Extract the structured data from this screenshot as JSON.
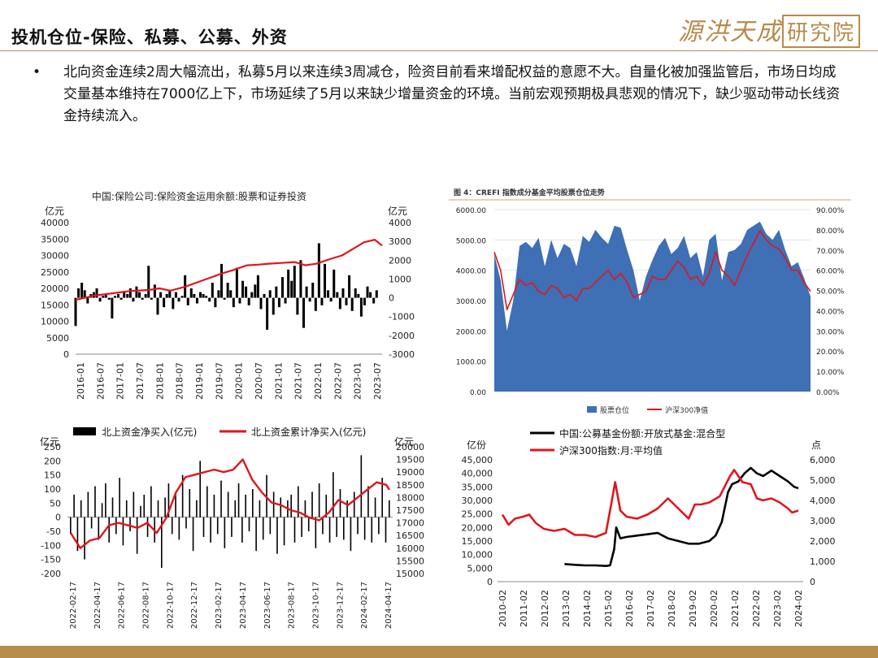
{
  "header": {
    "title": "投机仓位-保险、私募、公募、外资",
    "logo_text": "源洪天成",
    "logo_box_text": "研究院"
  },
  "bullet": {
    "text": "北向资金连续2周大幅流出，私募5月以来连续3周减仓，险资目前看来增配权益的意愿不大。自量化被加强监管后，市场日均成交量基本维持在7000亿上下，市场延续了5月以来缺少增量资金的环境。当前宏观预期极具悲观的情况下，缺少驱动带动长线资金持续流入。"
  },
  "colors": {
    "red": "#e0161b",
    "black": "#000000",
    "blue_area": "#3f6fb5",
    "footer": "#b68d4c",
    "accent": "#b88a4a"
  },
  "chart_data": [
    {
      "type": "bar",
      "title": "中国:保险公司:保险资金运用余额:股票和证券投资",
      "left_unit": "亿元",
      "right_unit": "亿元",
      "left_ticks": [
        "40000",
        "35000",
        "30000",
        "25000",
        "20000",
        "15000",
        "10000",
        "5000",
        "0"
      ],
      "right_ticks": [
        "4000",
        "3000",
        "2000",
        "1000",
        "0",
        "-1000",
        "-2000",
        "-3000"
      ],
      "ylim_left": [
        0,
        40000
      ],
      "ylim_right": [
        -3000,
        4000
      ],
      "x_ticks": [
        "2016-01",
        "2016-07",
        "2017-01",
        "2017-07",
        "2018-01",
        "2018-07",
        "2019-01",
        "2019-07",
        "2020-01",
        "2020-07",
        "2021-01",
        "2021-07",
        "2022-01",
        "2022-07",
        "2023-01",
        "2023-07"
      ],
      "series": [
        {
          "kind": "line",
          "axis": "left",
          "color": "#e0161b",
          "x": [
            2016.0,
            2016.5,
            2017.0,
            2017.5,
            2018.0,
            2018.3,
            2018.6,
            2019.0,
            2019.5,
            2020.0,
            2020.3,
            2020.7,
            2021.0,
            2021.3,
            2021.6,
            2022.0,
            2022.3,
            2022.6,
            2023.0,
            2023.3,
            2023.6,
            2023.9,
            2024.2,
            2024.4
          ],
          "y": [
            16500,
            17800,
            18500,
            19200,
            19500,
            20000,
            19300,
            20500,
            22500,
            24500,
            25500,
            27000,
            27200,
            27500,
            27700,
            28000,
            27000,
            27500,
            29000,
            30000,
            32000,
            34000,
            34800,
            33000
          ]
        },
        {
          "kind": "bar",
          "axis": "right",
          "x": [
            2016.0,
            2016.08,
            2016.17,
            2016.25,
            2016.33,
            2016.42,
            2016.5,
            2016.58,
            2016.67,
            2016.75,
            2016.83,
            2016.92,
            2017.0,
            2017.08,
            2017.17,
            2017.25,
            2017.33,
            2017.42,
            2017.5,
            2017.58,
            2017.67,
            2017.75,
            2017.83,
            2017.92,
            2018.0,
            2018.08,
            2018.17,
            2018.25,
            2018.33,
            2018.42,
            2018.5,
            2018.58,
            2018.67,
            2018.75,
            2018.83,
            2018.92,
            2019.0,
            2019.08,
            2019.17,
            2019.25,
            2019.33,
            2019.42,
            2019.5,
            2019.58,
            2019.67,
            2019.75,
            2019.83,
            2019.92,
            2020.0,
            2020.08,
            2020.17,
            2020.25,
            2020.33,
            2020.42,
            2020.5,
            2020.58,
            2020.67,
            2020.75,
            2020.83,
            2020.92,
            2021.0,
            2021.08,
            2021.17,
            2021.25,
            2021.33,
            2021.42,
            2021.5,
            2021.58,
            2021.67,
            2021.75,
            2021.83,
            2021.92,
            2022.0,
            2022.08,
            2022.17,
            2022.25,
            2022.33,
            2022.42,
            2022.5,
            2022.58,
            2022.67,
            2022.75,
            2022.83,
            2022.92,
            2023.0,
            2023.08,
            2023.17,
            2023.25,
            2023.33,
            2023.42,
            2023.5,
            2023.58,
            2023.67,
            2023.75,
            2023.83,
            2023.92,
            2024.0,
            2024.08,
            2024.17,
            2024.25
          ],
          "y": [
            -1500,
            500,
            800,
            400,
            -300,
            200,
            300,
            500,
            -200,
            100,
            200,
            -100,
            -1100,
            100,
            200,
            -100,
            300,
            200,
            500,
            -200,
            600,
            300,
            -100,
            200,
            1700,
            -100,
            700,
            -900,
            300,
            -500,
            200,
            400,
            -600,
            300,
            -200,
            100,
            1200,
            -400,
            500,
            200,
            -300,
            300,
            200,
            100,
            -200,
            800,
            -500,
            400,
            1800,
            -100,
            800,
            400,
            -500,
            1600,
            -300,
            900,
            600,
            -400,
            300,
            700,
            1200,
            -600,
            200,
            -1700,
            400,
            -900,
            600,
            -500,
            1100,
            -300,
            1500,
            900,
            1700,
            -900,
            2000,
            -1600,
            600,
            -200,
            800,
            -700,
            2900,
            -400,
            1800,
            400,
            -200,
            1500,
            300,
            -600,
            500,
            -400,
            1200,
            -700,
            500,
            200,
            -1000,
            -400,
            600,
            300,
            -300,
            400
          ]
        }
      ]
    },
    {
      "type": "area",
      "title": "图 4：CREFI 指数成分基金平均股票仓位走势",
      "left_ticks": [
        "6000.00",
        "5000.00",
        "4000.00",
        "3000.00",
        "2000.00",
        "1000.00",
        "0.00"
      ],
      "right_ticks": [
        "90.00%",
        "80.00%",
        "70.00%",
        "60.00%",
        "50.00%",
        "40.00%",
        "30.00%",
        "20.00%",
        "10.00%",
        "0.00%"
      ],
      "ylim_left": [
        0,
        6000
      ],
      "ylim_right": [
        0,
        90
      ],
      "legend": [
        "股票仓位",
        "沪深300净值"
      ],
      "series": [
        {
          "name": "股票仓位",
          "kind": "area",
          "axis": "right",
          "color": "#3f6fb5",
          "x": [
            0,
            2,
            4,
            6,
            8,
            10,
            12,
            14,
            16,
            18,
            20,
            22,
            24,
            26,
            28,
            30,
            32,
            34,
            36,
            38,
            40,
            42,
            44,
            46,
            48,
            50,
            52,
            54,
            56,
            58,
            60,
            62,
            64,
            66,
            68,
            70,
            72,
            74,
            76,
            78,
            80,
            82,
            84,
            86,
            88,
            90,
            92,
            94,
            96,
            98,
            100
          ],
          "y": [
            68,
            55,
            30,
            45,
            72,
            74,
            71,
            76,
            62,
            75,
            66,
            73,
            71,
            62,
            77,
            74,
            80,
            76,
            73,
            82,
            81,
            70,
            60,
            45,
            57,
            65,
            72,
            76,
            68,
            71,
            77,
            66,
            69,
            57,
            75,
            78,
            55,
            69,
            70,
            73,
            80,
            82,
            84,
            78,
            75,
            80,
            70,
            62,
            64,
            56,
            47
          ]
        },
        {
          "name": "沪深300净值",
          "kind": "line",
          "axis": "left",
          "color": "#e0161b",
          "x": [
            0,
            2,
            4,
            6,
            8,
            10,
            12,
            14,
            16,
            18,
            20,
            22,
            24,
            26,
            28,
            30,
            32,
            34,
            36,
            38,
            40,
            42,
            44,
            46,
            48,
            50,
            52,
            54,
            56,
            58,
            60,
            62,
            64,
            66,
            68,
            70,
            72,
            74,
            76,
            78,
            80,
            82,
            84,
            86,
            88,
            90,
            92,
            94,
            96,
            98,
            100
          ],
          "y": [
            4600,
            4000,
            2700,
            3200,
            3700,
            3500,
            3600,
            3300,
            3200,
            3500,
            3400,
            3100,
            3200,
            3000,
            3400,
            3400,
            3600,
            3800,
            4000,
            3700,
            3900,
            3600,
            3100,
            3200,
            3300,
            3800,
            3700,
            3700,
            4000,
            4300,
            4100,
            3700,
            3800,
            3500,
            3900,
            4600,
            4000,
            3800,
            3500,
            4000,
            4500,
            4900,
            5300,
            5000,
            4800,
            4700,
            4400,
            4000,
            4000,
            3600,
            3300
          ]
        }
      ]
    },
    {
      "type": "bar",
      "legend": [
        "北上资金净买入(亿元)",
        "北上资金累计净买入(亿元)"
      ],
      "left_unit": "亿元",
      "right_unit": "亿元",
      "left_ticks": [
        "250",
        "200",
        "150",
        "100",
        "50",
        "0",
        "-50",
        "-100",
        "-150",
        "-200"
      ],
      "right_ticks": [
        "20000",
        "19500",
        "19000",
        "18500",
        "18000",
        "17500",
        "17000",
        "16500",
        "16000",
        "15500",
        "15000"
      ],
      "ylim_left": [
        -200,
        250
      ],
      "ylim_right": [
        15000,
        20000
      ],
      "x_ticks": [
        "2022-02-17",
        "2022-04-17",
        "2022-06-17",
        "2022-08-17",
        "2022-10-17",
        "2022-12-17",
        "2023-02-17",
        "2023-04-17",
        "2023-06-17",
        "2023-08-17",
        "2023-10-17",
        "2023-12-17",
        "2024-02-17",
        "2024-04-17"
      ],
      "series": [
        {
          "name": "北上资金累计净买入(亿元)",
          "kind": "line",
          "axis": "right",
          "color": "#e0161b",
          "x": [
            0,
            3,
            6,
            9,
            12,
            15,
            18,
            21,
            24,
            27,
            30,
            33,
            36,
            39,
            42,
            45,
            48,
            51,
            54,
            57,
            60,
            63,
            66,
            69,
            72,
            75,
            78,
            81,
            84,
            87,
            90,
            93,
            96,
            99,
            100
          ],
          "y": [
            16600,
            16000,
            16300,
            16400,
            16900,
            17000,
            16900,
            16800,
            17000,
            16600,
            17200,
            18200,
            18800,
            18900,
            19000,
            19100,
            19000,
            19100,
            19500,
            18700,
            18200,
            17800,
            17700,
            17500,
            17400,
            17200,
            17100,
            17400,
            17900,
            17700,
            18000,
            18300,
            18600,
            18500,
            18300
          ]
        },
        {
          "name": "北上资金净买入(亿元)",
          "kind": "bar",
          "axis": "left",
          "y": [
            -60,
            80,
            -120,
            60,
            -150,
            90,
            -40,
            110,
            -80,
            50,
            120,
            -90,
            70,
            -60,
            140,
            -100,
            60,
            -50,
            90,
            -130,
            40,
            80,
            -70,
            110,
            -90,
            60,
            -180,
            70,
            120,
            -60,
            90,
            -80,
            150,
            -40,
            100,
            -120,
            60,
            200,
            -70,
            110,
            -90,
            80,
            -60,
            130,
            -110,
            90,
            -70,
            60,
            120,
            -90,
            80,
            -50,
            100,
            -120,
            60,
            -80,
            150,
            -60,
            90,
            -130,
            70,
            -100,
            60,
            80,
            -90,
            110,
            -70,
            60,
            -50,
            90,
            -110,
            120,
            -60,
            80,
            -90,
            160,
            -70,
            100,
            -80,
            60,
            -120,
            90,
            -60,
            220,
            -80,
            110,
            -90,
            70,
            -60,
            140,
            -90,
            60
          ]
        }
      ]
    },
    {
      "type": "line",
      "legend": [
        "中国:公募基金份额:开放式基金:混合型",
        "沪深300指数:月:平均值"
      ],
      "left_unit": "亿份",
      "right_unit": "点",
      "left_ticks": [
        "45,000",
        "40,000",
        "35,000",
        "30,000",
        "25,000",
        "20,000",
        "15,000",
        "10,000",
        "5,000",
        "0"
      ],
      "right_ticks": [
        "6,000",
        "5,000",
        "4,000",
        "3,000",
        "2,000",
        "1,000",
        "0"
      ],
      "ylim_left": [
        0,
        45000
      ],
      "ylim_right": [
        0,
        6000
      ],
      "x_ticks": [
        "2010-02",
        "2011-02",
        "2012-02",
        "2013-02",
        "2014-02",
        "2015-02",
        "2016-02",
        "2017-02",
        "2018-02",
        "2019-02",
        "2020-02",
        "2021-02",
        "2022-02",
        "2023-02",
        "2024-02"
      ],
      "series": [
        {
          "name": "中国:公募基金份额:开放式基金:混合型",
          "kind": "line",
          "axis": "left",
          "color": "#000000",
          "x": [
            2013.0,
            2013.5,
            2014.0,
            2014.5,
            2015.0,
            2015.2,
            2015.4,
            2015.5,
            2015.7,
            2016.0,
            2016.5,
            2017.0,
            2017.5,
            2018.0,
            2018.5,
            2019.0,
            2019.5,
            2020.0,
            2020.3,
            2020.6,
            2020.9,
            2021.1,
            2021.4,
            2021.7,
            2022.0,
            2022.3,
            2022.6,
            2023.0,
            2023.4,
            2023.8,
            2024.1,
            2024.3
          ],
          "y": [
            6500,
            6200,
            6000,
            6000,
            5800,
            6000,
            12000,
            20000,
            16000,
            16500,
            17000,
            17500,
            18000,
            16000,
            15000,
            14000,
            14000,
            15000,
            17000,
            22000,
            33000,
            36000,
            37000,
            40000,
            42000,
            40000,
            39000,
            41000,
            39000,
            37000,
            35000,
            34500
          ]
        },
        {
          "name": "沪深300指数:月:平均值",
          "kind": "line",
          "axis": "right",
          "color": "#e0161b",
          "x": [
            2010.0,
            2010.3,
            2010.6,
            2011.0,
            2011.3,
            2011.6,
            2012.0,
            2012.5,
            2013.0,
            2013.5,
            2014.0,
            2014.5,
            2015.0,
            2015.2,
            2015.45,
            2015.7,
            2016.0,
            2016.5,
            2017.0,
            2017.5,
            2018.0,
            2018.5,
            2019.0,
            2019.3,
            2019.6,
            2020.0,
            2020.5,
            2021.0,
            2021.2,
            2021.6,
            2022.0,
            2022.3,
            2022.6,
            2023.0,
            2023.4,
            2023.8,
            2024.0,
            2024.3
          ],
          "y": [
            3300,
            2800,
            3100,
            3200,
            3300,
            2900,
            2600,
            2500,
            2600,
            2300,
            2300,
            2200,
            2400,
            3500,
            4900,
            3500,
            3200,
            3100,
            3300,
            3600,
            4100,
            3600,
            3100,
            3800,
            3800,
            3900,
            4200,
            5200,
            5500,
            4900,
            4800,
            4100,
            4000,
            4100,
            3900,
            3600,
            3400,
            3500
          ]
        }
      ]
    }
  ]
}
